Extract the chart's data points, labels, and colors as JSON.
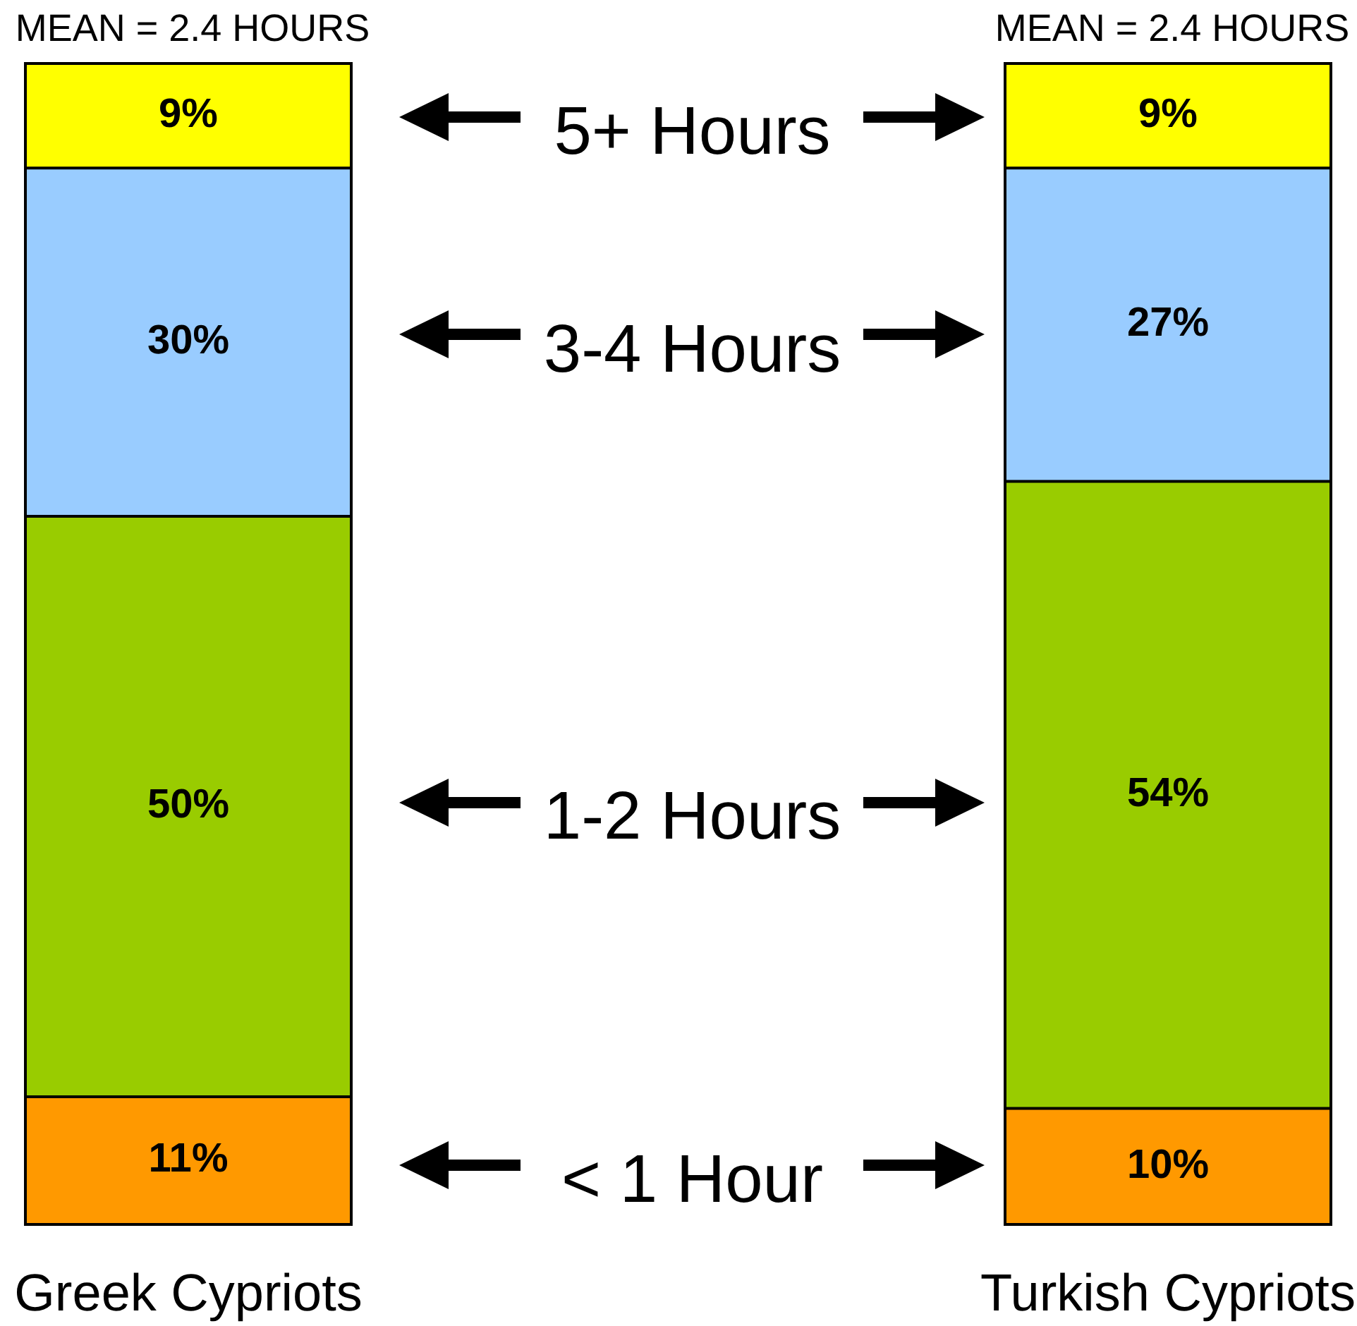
{
  "chart_data": {
    "type": "bar",
    "stacked": true,
    "categories": [
      "Greek Cypriots",
      "Turkish Cypriots"
    ],
    "series": [
      {
        "name": "< 1 Hour",
        "color": "#ff9900",
        "values": [
          11,
          10
        ],
        "value_labels": [
          "11%",
          "10%"
        ]
      },
      {
        "name": "1-2 Hours",
        "color": "#99cc00",
        "values": [
          50,
          54
        ],
        "value_labels": [
          "50%",
          "54%"
        ]
      },
      {
        "name": "3-4 Hours",
        "color": "#99ccff",
        "values": [
          30,
          27
        ],
        "value_labels": [
          "30%",
          "27%"
        ]
      },
      {
        "name": "5+ Hours",
        "color": "#ffff00",
        "values": [
          9,
          9
        ],
        "value_labels": [
          "9%",
          "9%"
        ]
      }
    ],
    "ylim": [
      0,
      100
    ],
    "tick_labels": "x",
    "legend": "center",
    "annotations": [
      "MEAN = 2.4 HOURS",
      "MEAN = 2.4 HOURS"
    ]
  }
}
